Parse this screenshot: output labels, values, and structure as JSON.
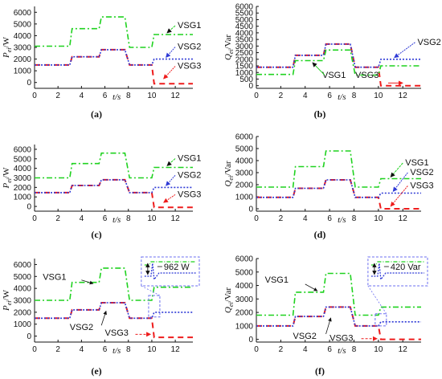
{
  "colors": {
    "VSG1": "#1fd21f",
    "VSG2": "#2f3ad6",
    "VSG3": "#ee1c1c",
    "purple": "#8a3fb0",
    "inset": "#6a6ef0"
  },
  "chart_data": [
    {
      "id": "a",
      "type": "line",
      "panel_label": "(a)",
      "ylabel": "Pei/W",
      "xlabel": "t/s",
      "xlim": [
        0,
        13.5
      ],
      "ylim": [
        -500,
        6500
      ],
      "xticks": [
        0,
        2,
        4,
        6,
        8,
        10,
        12
      ],
      "yticks": [
        0,
        1000,
        2000,
        3000,
        4000,
        5000,
        6000
      ],
      "series": [
        {
          "name": "VSG1",
          "values": [
            [
              0,
              3100
            ],
            [
              3,
              3100
            ],
            [
              3.2,
              4600
            ],
            [
              5.5,
              4600
            ],
            [
              5.7,
              5600
            ],
            [
              7.7,
              5600
            ],
            [
              8.1,
              3000
            ],
            [
              10,
              3000
            ],
            [
              10.2,
              4100
            ],
            [
              13.5,
              4100
            ]
          ]
        },
        {
          "name": "VSG2",
          "values": [
            [
              0,
              1500
            ],
            [
              3,
              1500
            ],
            [
              3.2,
              2200
            ],
            [
              5.5,
              2200
            ],
            [
              5.7,
              2800
            ],
            [
              7.7,
              2800
            ],
            [
              8.1,
              1500
            ],
            [
              10,
              1500
            ],
            [
              10.2,
              2000
            ],
            [
              13.5,
              2000
            ]
          ]
        },
        {
          "name": "VSG3",
          "values": [
            [
              0,
              1500
            ],
            [
              3,
              1500
            ],
            [
              3.2,
              2200
            ],
            [
              5.5,
              2200
            ],
            [
              5.7,
              2800
            ],
            [
              7.7,
              2800
            ],
            [
              8.1,
              1500
            ],
            [
              10,
              1500
            ],
            [
              10.2,
              -100
            ],
            [
              13.5,
              -100
            ]
          ]
        }
      ]
    },
    {
      "id": "b",
      "type": "line",
      "panel_label": "(b)",
      "ylabel": "Qei/Var",
      "xlabel": "t/s",
      "xlim": [
        0,
        13.5
      ],
      "ylim": [
        -200,
        6000
      ],
      "xticks": [
        0,
        2,
        4,
        6,
        8,
        10,
        12
      ],
      "yticks": [
        0,
        500,
        1000,
        1500,
        2000,
        2500,
        3000,
        3500,
        4000,
        4500,
        5000,
        5500,
        6000
      ],
      "series": [
        {
          "name": "VSG1",
          "values": [
            [
              0,
              850
            ],
            [
              3,
              850
            ],
            [
              3.2,
              1900
            ],
            [
              5.5,
              1900
            ],
            [
              5.7,
              2700
            ],
            [
              7.7,
              2700
            ],
            [
              8.1,
              800
            ],
            [
              10,
              800
            ],
            [
              10.2,
              1500
            ],
            [
              13.5,
              1500
            ]
          ]
        },
        {
          "name": "VSG2",
          "values": [
            [
              0,
              1400
            ],
            [
              3,
              1400
            ],
            [
              3.2,
              2300
            ],
            [
              5.5,
              2300
            ],
            [
              5.7,
              3150
            ],
            [
              7.7,
              3150
            ],
            [
              8.1,
              1400
            ],
            [
              10,
              1400
            ],
            [
              10.2,
              2000
            ],
            [
              13.5,
              2000
            ]
          ]
        },
        {
          "name": "VSG3",
          "values": [
            [
              0,
              1400
            ],
            [
              3,
              1400
            ],
            [
              3.2,
              2300
            ],
            [
              5.5,
              2300
            ],
            [
              5.7,
              3150
            ],
            [
              7.7,
              3150
            ],
            [
              8.1,
              1400
            ],
            [
              10,
              1400
            ],
            [
              10.2,
              0
            ],
            [
              13.5,
              0
            ]
          ]
        }
      ]
    },
    {
      "id": "c",
      "type": "line",
      "panel_label": "(c)",
      "ylabel": "Pei/W",
      "xlabel": "t/s",
      "xlim": [
        0,
        13.5
      ],
      "ylim": [
        -500,
        6500
      ],
      "xticks": [
        0,
        2,
        4,
        6,
        8,
        10,
        12
      ],
      "yticks": [
        0,
        1000,
        2000,
        3000,
        4000,
        5000,
        6000
      ],
      "series": [
        {
          "name": "VSG1",
          "values": [
            [
              0,
              3000
            ],
            [
              3,
              3000
            ],
            [
              3.2,
              4500
            ],
            [
              5.5,
              4500
            ],
            [
              5.7,
              5600
            ],
            [
              7.7,
              5600
            ],
            [
              8.1,
              3000
            ],
            [
              10,
              3000
            ],
            [
              10.2,
              4100
            ],
            [
              13.5,
              4100
            ]
          ]
        },
        {
          "name": "VSG2",
          "values": [
            [
              0,
              1450
            ],
            [
              3,
              1450
            ],
            [
              3.2,
              2200
            ],
            [
              5.5,
              2200
            ],
            [
              5.7,
              2800
            ],
            [
              7.7,
              2800
            ],
            [
              8.1,
              1450
            ],
            [
              10,
              1450
            ],
            [
              10.2,
              2000
            ],
            [
              13.5,
              2000
            ]
          ]
        },
        {
          "name": "VSG3",
          "values": [
            [
              0,
              1450
            ],
            [
              3,
              1450
            ],
            [
              3.2,
              2200
            ],
            [
              5.5,
              2200
            ],
            [
              5.7,
              2800
            ],
            [
              7.7,
              2800
            ],
            [
              8.1,
              1450
            ],
            [
              10,
              1450
            ],
            [
              10.2,
              -100
            ],
            [
              13.5,
              -100
            ]
          ]
        }
      ]
    },
    {
      "id": "d",
      "type": "line",
      "panel_label": "(d)",
      "ylabel": "Qei/Var",
      "xlabel": "t/s",
      "xlim": [
        0,
        13.5
      ],
      "ylim": [
        -200,
        6000
      ],
      "xticks": [
        0,
        2,
        4,
        6,
        8,
        10,
        12
      ],
      "yticks": [
        0,
        1000,
        2000,
        3000,
        4000,
        5000,
        6000
      ],
      "series": [
        {
          "name": "VSG1",
          "values": [
            [
              0,
              1800
            ],
            [
              3,
              1800
            ],
            [
              3.2,
              3500
            ],
            [
              5.5,
              3500
            ],
            [
              5.7,
              4800
            ],
            [
              7.7,
              4800
            ],
            [
              8.1,
              1800
            ],
            [
              10,
              1800
            ],
            [
              10.2,
              2500
            ],
            [
              13.5,
              2500
            ]
          ]
        },
        {
          "name": "VSG2",
          "values": [
            [
              0,
              950
            ],
            [
              3,
              950
            ],
            [
              3.2,
              1700
            ],
            [
              5.5,
              1700
            ],
            [
              5.7,
              2400
            ],
            [
              7.7,
              2400
            ],
            [
              8.1,
              950
            ],
            [
              10,
              950
            ],
            [
              10.2,
              1300
            ],
            [
              13.5,
              1300
            ]
          ]
        },
        {
          "name": "VSG3",
          "values": [
            [
              0,
              950
            ],
            [
              3,
              950
            ],
            [
              3.2,
              1700
            ],
            [
              5.5,
              1700
            ],
            [
              5.7,
              2400
            ],
            [
              7.7,
              2400
            ],
            [
              8.1,
              950
            ],
            [
              10,
              950
            ],
            [
              10.2,
              0
            ],
            [
              13.5,
              0
            ]
          ]
        }
      ]
    },
    {
      "id": "e",
      "type": "line",
      "panel_label": "(e)",
      "ylabel": "Pei/W",
      "xlabel": "t/s",
      "xlim": [
        0,
        13.5
      ],
      "ylim": [
        -500,
        6500
      ],
      "xticks": [
        0,
        2,
        4,
        6,
        8,
        10,
        12
      ],
      "yticks": [
        0,
        1000,
        2000,
        3000,
        4000,
        5000,
        6000
      ],
      "annotation": "962 W",
      "series": [
        {
          "name": "VSG1",
          "values": [
            [
              0,
              3000
            ],
            [
              3,
              3000
            ],
            [
              3.2,
              4500
            ],
            [
              5.5,
              4500
            ],
            [
              5.7,
              5700
            ],
            [
              7.7,
              5700
            ],
            [
              8.1,
              3000
            ],
            [
              10,
              3000
            ],
            [
              10.2,
              4100
            ],
            [
              13.5,
              4100
            ]
          ]
        },
        {
          "name": "VSG2",
          "values": [
            [
              0,
              1500
            ],
            [
              3,
              1500
            ],
            [
              3.2,
              2200
            ],
            [
              5.5,
              2200
            ],
            [
              5.7,
              2800
            ],
            [
              7.7,
              2800
            ],
            [
              8.1,
              1500
            ],
            [
              10,
              1500
            ],
            [
              10.2,
              2000
            ],
            [
              13.5,
              2000
            ]
          ]
        },
        {
          "name": "VSG3",
          "values": [
            [
              0,
              1500
            ],
            [
              3,
              1500
            ],
            [
              3.2,
              2200
            ],
            [
              5.5,
              2200
            ],
            [
              5.7,
              2800
            ],
            [
              7.7,
              2800
            ],
            [
              8.1,
              1500
            ],
            [
              10,
              1500
            ],
            [
              10.2,
              -100
            ],
            [
              13.5,
              -100
            ]
          ]
        }
      ]
    },
    {
      "id": "f",
      "type": "line",
      "panel_label": "(f)",
      "ylabel": "Qei/Var",
      "xlabel": "t/s",
      "xlim": [
        0,
        13.5
      ],
      "ylim": [
        -200,
        6000
      ],
      "xticks": [
        0,
        2,
        4,
        6,
        8,
        10,
        12
      ],
      "yticks": [
        0,
        1000,
        2000,
        3000,
        4000,
        5000,
        6000
      ],
      "annotation": "420 Var",
      "series": [
        {
          "name": "VSG1",
          "values": [
            [
              0,
              1800
            ],
            [
              3,
              1800
            ],
            [
              3.2,
              3500
            ],
            [
              5.5,
              3500
            ],
            [
              5.7,
              4900
            ],
            [
              7.7,
              4900
            ],
            [
              8.1,
              1800
            ],
            [
              10,
              1800
            ],
            [
              10.2,
              2400
            ],
            [
              13.5,
              2400
            ]
          ]
        },
        {
          "name": "VSG2",
          "values": [
            [
              0,
              1000
            ],
            [
              3,
              1000
            ],
            [
              3.2,
              1700
            ],
            [
              5.5,
              1700
            ],
            [
              5.7,
              2400
            ],
            [
              7.7,
              2400
            ],
            [
              8.1,
              1000
            ],
            [
              10,
              1000
            ],
            [
              10.2,
              1300
            ],
            [
              13.5,
              1300
            ]
          ]
        },
        {
          "name": "VSG3",
          "values": [
            [
              0,
              1000
            ],
            [
              3,
              1000
            ],
            [
              3.2,
              1700
            ],
            [
              5.5,
              1700
            ],
            [
              5.7,
              2400
            ],
            [
              7.7,
              2400
            ],
            [
              8.1,
              1000
            ],
            [
              10,
              1000
            ],
            [
              10.2,
              0
            ],
            [
              13.5,
              0
            ]
          ]
        }
      ]
    }
  ]
}
